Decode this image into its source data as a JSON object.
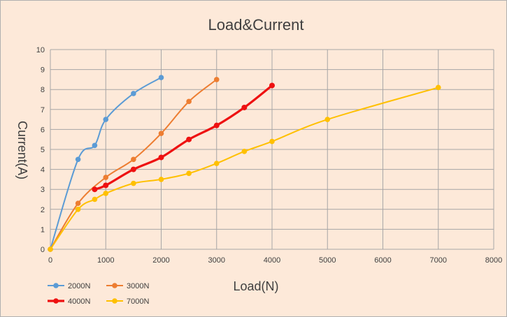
{
  "chart_data": {
    "type": "line",
    "title": "Load&Current",
    "xlabel": "Load(N)",
    "ylabel": "Current(A)",
    "xlim": [
      0,
      8000
    ],
    "ylim": [
      0,
      10
    ],
    "x_ticks": [
      "0",
      "1000",
      "2000",
      "3000",
      "4000",
      "5000",
      "6000",
      "7000",
      "8000"
    ],
    "y_ticks": [
      "0",
      "1",
      "2",
      "3",
      "4",
      "5",
      "6",
      "7",
      "8",
      "9",
      "10"
    ],
    "grid": true,
    "legend_position": "bottom-left",
    "series": [
      {
        "name": "2000N",
        "color": "#5b9bd5",
        "stroke_weight": "normal",
        "points": [
          [
            0,
            0
          ],
          [
            500,
            4.5
          ],
          [
            800,
            5.2
          ],
          [
            1000,
            6.5
          ],
          [
            1500,
            7.8
          ],
          [
            2000,
            8.6
          ]
        ]
      },
      {
        "name": "3000N",
        "color": "#ed7d31",
        "stroke_weight": "normal",
        "points": [
          [
            0,
            0
          ],
          [
            500,
            2.3
          ],
          [
            1000,
            3.6
          ],
          [
            1500,
            4.5
          ],
          [
            2000,
            5.8
          ],
          [
            2500,
            7.4
          ],
          [
            3000,
            8.5
          ]
        ]
      },
      {
        "name": "4000N",
        "color": "#ee1111",
        "stroke_weight": "bold",
        "points": [
          [
            800,
            3.0
          ],
          [
            1000,
            3.2
          ],
          [
            1500,
            4.0
          ],
          [
            2000,
            4.6
          ],
          [
            2500,
            5.5
          ],
          [
            3000,
            6.2
          ],
          [
            3500,
            7.1
          ],
          [
            4000,
            8.2
          ]
        ]
      },
      {
        "name": "7000N",
        "color": "#ffc000",
        "stroke_weight": "normal",
        "points": [
          [
            0,
            0
          ],
          [
            500,
            2.0
          ],
          [
            800,
            2.5
          ],
          [
            1000,
            2.8
          ],
          [
            1500,
            3.3
          ],
          [
            2000,
            3.5
          ],
          [
            2500,
            3.8
          ],
          [
            3000,
            4.3
          ],
          [
            3500,
            4.9
          ],
          [
            4000,
            5.4
          ],
          [
            5000,
            6.5
          ],
          [
            7000,
            8.1
          ]
        ]
      }
    ]
  }
}
